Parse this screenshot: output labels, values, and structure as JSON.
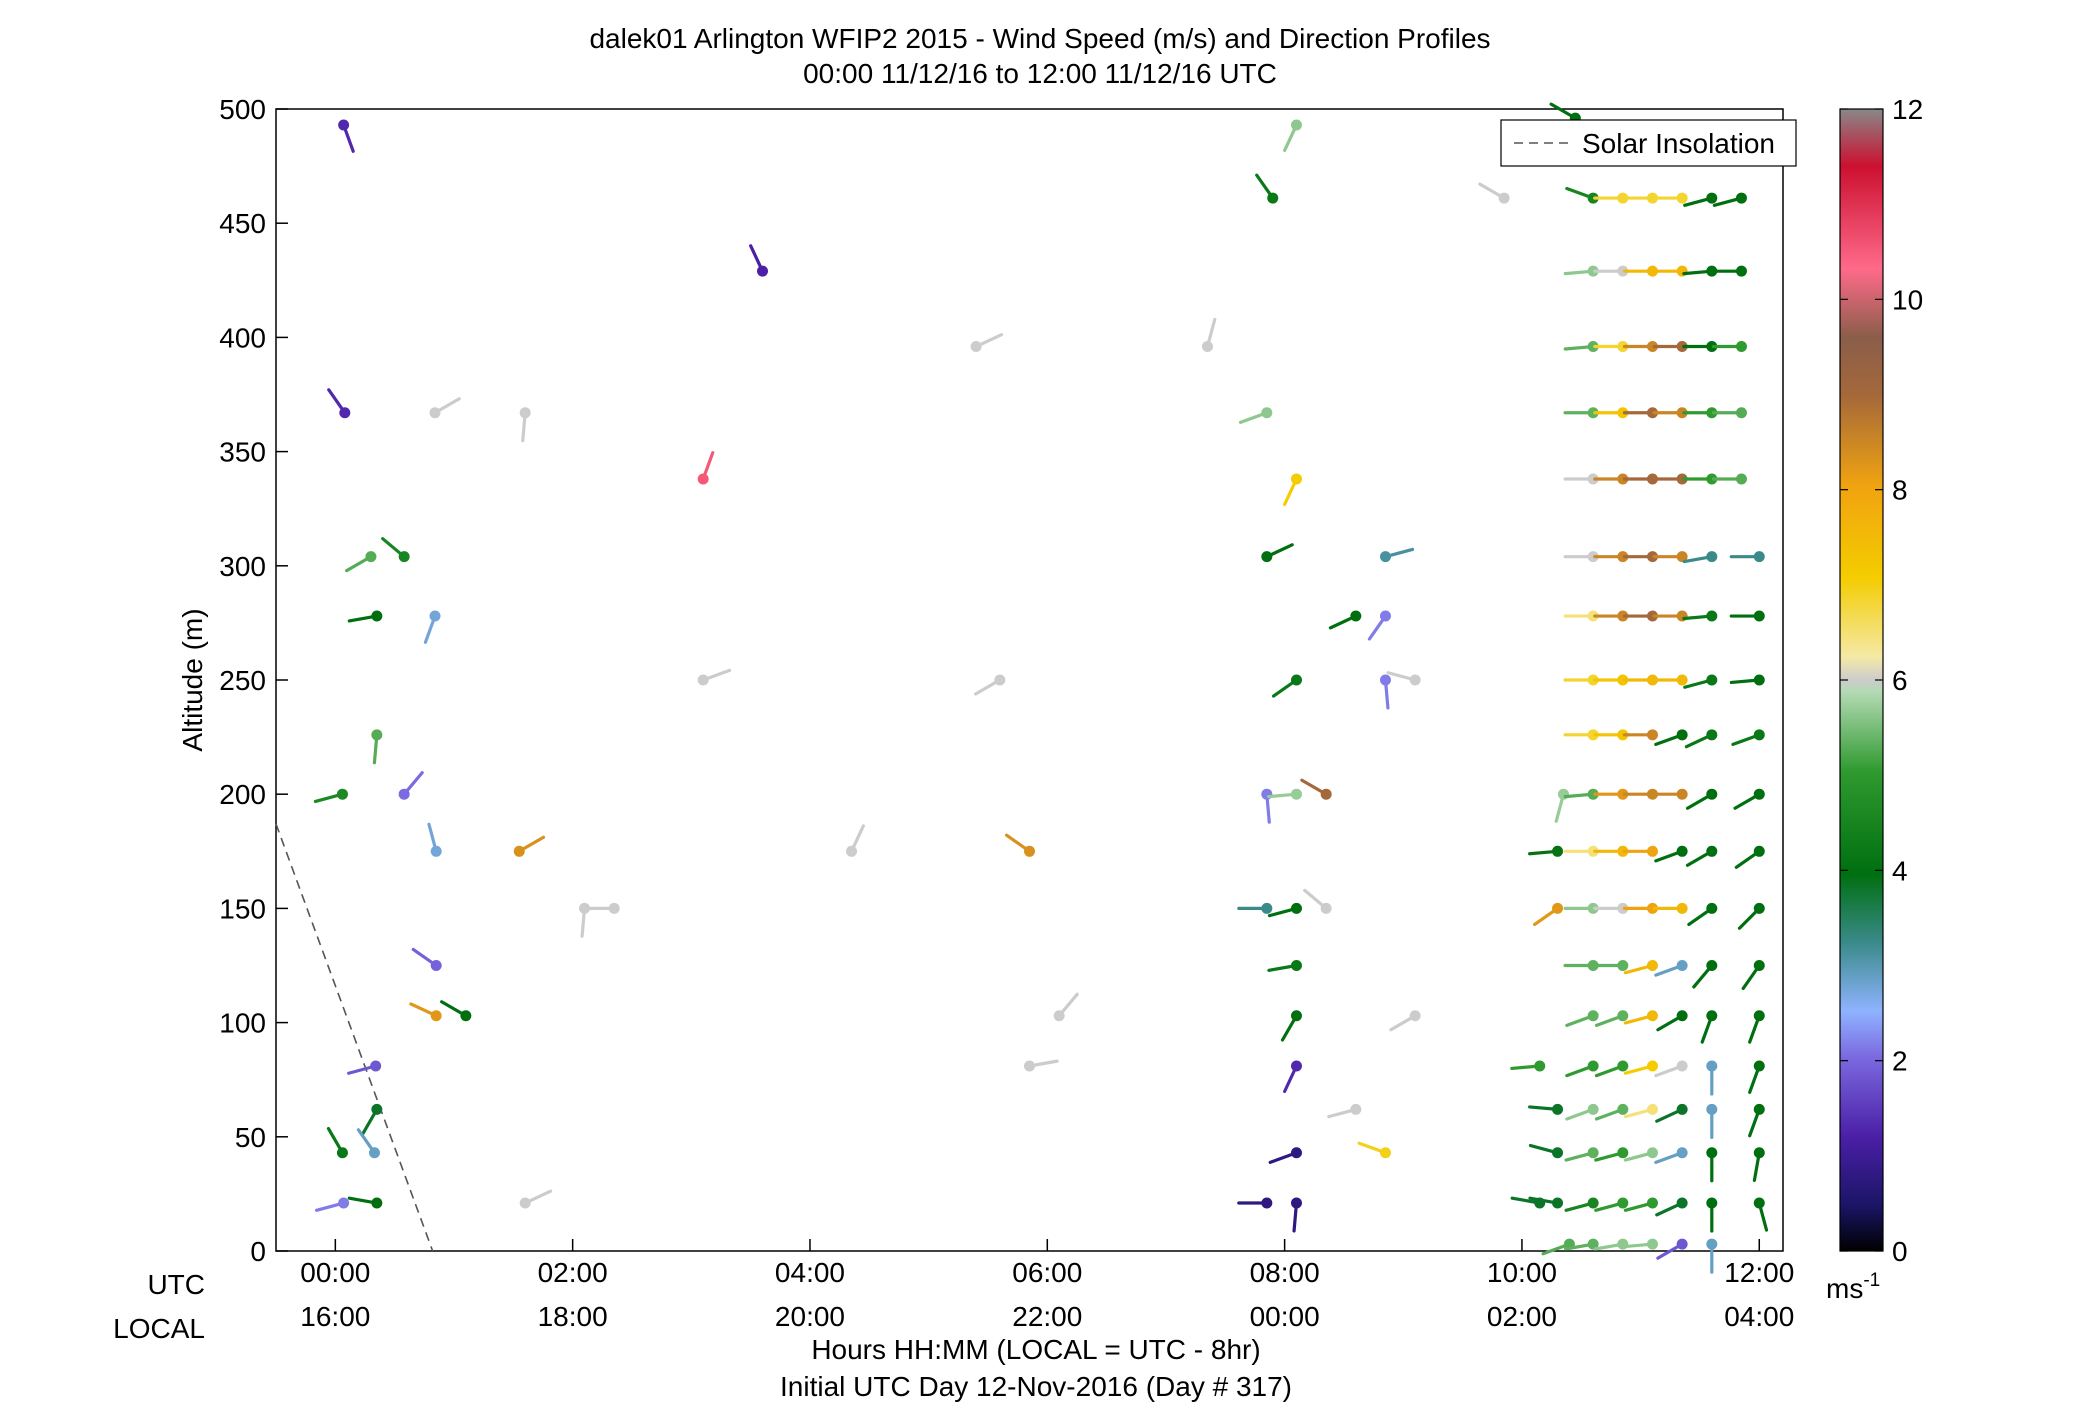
{
  "chart_data": {
    "type": "scatter",
    "title": "dalek01 Arlington WFIP2 2015 - Wind Speed (m/s) and Direction Profiles",
    "subtitle": "00:00 11/12/16 to 12:00 11/12/16  UTC",
    "ylabel": "Altitude (m)",
    "xlabel": "Hours HH:MM  (LOCAL = UTC - 8hr)",
    "xlabel2": "Initial UTC Day 12-Nov-2016 (Day # 317)",
    "row_labels": {
      "utc": "UTC",
      "local": "LOCAL"
    },
    "xlim": [
      -0.5,
      12.2
    ],
    "ylim": [
      0,
      500
    ],
    "x_ticks": [
      {
        "hour": 0,
        "utc": "00:00",
        "local": "16:00"
      },
      {
        "hour": 2,
        "utc": "02:00",
        "local": "18:00"
      },
      {
        "hour": 4,
        "utc": "04:00",
        "local": "20:00"
      },
      {
        "hour": 6,
        "utc": "06:00",
        "local": "22:00"
      },
      {
        "hour": 8,
        "utc": "08:00",
        "local": "00:00"
      },
      {
        "hour": 10,
        "utc": "10:00",
        "local": "02:00"
      },
      {
        "hour": 12,
        "utc": "12:00",
        "local": "04:00"
      }
    ],
    "y_ticks": [
      "0",
      "50",
      "100",
      "150",
      "200",
      "250",
      "300",
      "350",
      "400",
      "450",
      "500"
    ],
    "legend": {
      "label": "Solar Insolation",
      "position": "top-right",
      "line_color": "#555555"
    },
    "solar_insolation": {
      "x": [
        -0.5,
        0.82
      ],
      "y": [
        187,
        0
      ]
    },
    "colorbar": {
      "min": 0,
      "max": 12,
      "ticks": [
        "0",
        "2",
        "4",
        "6",
        "8",
        "10",
        "12"
      ],
      "unit": "ms",
      "unit_exp": "-1"
    },
    "points": [
      {
        "t": 0.07,
        "z": 493,
        "speed": 1.3,
        "dir": 160
      },
      {
        "t": 0.08,
        "z": 367,
        "speed": 1.3,
        "dir": 325
      },
      {
        "t": 0.06,
        "z": 200,
        "speed": 4.1,
        "dir": 255
      },
      {
        "t": 0.06,
        "z": 43,
        "speed": 3.7,
        "dir": 330
      },
      {
        "t": 0.07,
        "z": 21,
        "speed": 2.1,
        "dir": 255
      },
      {
        "t": 0.3,
        "z": 304,
        "speed": 4.9,
        "dir": 240
      },
      {
        "t": 0.35,
        "z": 278,
        "speed": 3.5,
        "dir": 260
      },
      {
        "t": 0.35,
        "z": 226,
        "speed": 4.9,
        "dir": 185
      },
      {
        "t": 0.34,
        "z": 81,
        "speed": 1.8,
        "dir": 255
      },
      {
        "t": 0.35,
        "z": 62,
        "speed": 3.4,
        "dir": 210
      },
      {
        "t": 0.33,
        "z": 43,
        "speed": 2.7,
        "dir": 325
      },
      {
        "t": 0.35,
        "z": 21,
        "speed": 3.5,
        "dir": 280
      },
      {
        "t": 0.58,
        "z": 304,
        "speed": 4.0,
        "dir": 310
      },
      {
        "t": 0.58,
        "z": 200,
        "speed": 2.0,
        "dir": 40
      },
      {
        "t": 0.84,
        "z": 367,
        "speed": 6.0,
        "dir": 60
      },
      {
        "t": 0.84,
        "z": 278,
        "speed": 2.6,
        "dir": 200
      },
      {
        "t": 0.85,
        "z": 175,
        "speed": 2.6,
        "dir": 345
      },
      {
        "t": 0.85,
        "z": 125,
        "speed": 1.9,
        "dir": 305
      },
      {
        "t": 0.85,
        "z": 103,
        "speed": 8.2,
        "dir": 295
      },
      {
        "t": 1.1,
        "z": 103,
        "speed": 3.5,
        "dir": 300
      },
      {
        "t": 1.6,
        "z": 367,
        "speed": 6.0,
        "dir": 185
      },
      {
        "t": 1.6,
        "z": 21,
        "speed": 6.0,
        "dir": 65
      },
      {
        "t": 1.55,
        "z": 175,
        "speed": 8.3,
        "dir": 60
      },
      {
        "t": 2.1,
        "z": 150,
        "speed": 6.0,
        "dir": 185
      },
      {
        "t": 2.35,
        "z": 150,
        "speed": 6.0,
        "dir": 270
      },
      {
        "t": 3.1,
        "z": 250,
        "speed": 6.0,
        "dir": 70
      },
      {
        "t": 3.1,
        "z": 338,
        "speed": 10.6,
        "dir": 20
      },
      {
        "t": 3.6,
        "z": 429,
        "speed": 1.2,
        "dir": 335
      },
      {
        "t": 4.35,
        "z": 175,
        "speed": 6.0,
        "dir": 25
      },
      {
        "t": 5.4,
        "z": 396,
        "speed": 6.0,
        "dir": 65
      },
      {
        "t": 5.6,
        "z": 250,
        "speed": 6.0,
        "dir": 240
      },
      {
        "t": 5.85,
        "z": 175,
        "speed": 8.3,
        "dir": 305
      },
      {
        "t": 6.1,
        "z": 103,
        "speed": 6.0,
        "dir": 40
      },
      {
        "t": 5.85,
        "z": 81,
        "speed": 6.0,
        "dir": 80
      },
      {
        "t": 7.35,
        "z": 396,
        "speed": 6.0,
        "dir": 15
      },
      {
        "t": 7.9,
        "z": 461,
        "speed": 3.7,
        "dir": 325
      },
      {
        "t": 7.85,
        "z": 367,
        "speed": 5.5,
        "dir": 250
      },
      {
        "t": 7.85,
        "z": 304,
        "speed": 3.5,
        "dir": 65
      },
      {
        "t": 7.85,
        "z": 200,
        "speed": 2.1,
        "dir": 175
      },
      {
        "t": 7.85,
        "z": 150,
        "speed": 3.0,
        "dir": 270
      },
      {
        "t": 7.85,
        "z": 21,
        "speed": 0.8,
        "dir": 270
      },
      {
        "t": 8.1,
        "z": 493,
        "speed": 5.5,
        "dir": 205
      },
      {
        "t": 8.1,
        "z": 338,
        "speed": 7.0,
        "dir": 205
      },
      {
        "t": 8.1,
        "z": 250,
        "speed": 3.7,
        "dir": 235
      },
      {
        "t": 8.1,
        "z": 200,
        "speed": 5.6,
        "dir": 265
      },
      {
        "t": 8.1,
        "z": 150,
        "speed": 3.5,
        "dir": 255
      },
      {
        "t": 8.1,
        "z": 125,
        "speed": 3.7,
        "dir": 260
      },
      {
        "t": 8.1,
        "z": 103,
        "speed": 3.5,
        "dir": 210
      },
      {
        "t": 8.1,
        "z": 81,
        "speed": 1.3,
        "dir": 205
      },
      {
        "t": 8.1,
        "z": 43,
        "speed": 0.8,
        "dir": 250
      },
      {
        "t": 8.1,
        "z": 21,
        "speed": 0.8,
        "dir": 185
      },
      {
        "t": 8.35,
        "z": 200,
        "speed": 9.0,
        "dir": 300
      },
      {
        "t": 8.35,
        "z": 150,
        "speed": 6.0,
        "dir": 310
      },
      {
        "t": 8.6,
        "z": 278,
        "speed": 3.5,
        "dir": 245
      },
      {
        "t": 8.6,
        "z": 62,
        "speed": 6.0,
        "dir": 255
      },
      {
        "t": 8.85,
        "z": 304,
        "speed": 2.9,
        "dir": 75
      },
      {
        "t": 8.85,
        "z": 278,
        "speed": 2.1,
        "dir": 215
      },
      {
        "t": 8.85,
        "z": 250,
        "speed": 2.1,
        "dir": 175
      },
      {
        "t": 8.85,
        "z": 43,
        "speed": 6.9,
        "dir": 290
      },
      {
        "t": 9.1,
        "z": 250,
        "speed": 6.0,
        "dir": 285
      },
      {
        "t": 9.1,
        "z": 103,
        "speed": 6.0,
        "dir": 240
      },
      {
        "t": 9.85,
        "z": 461,
        "speed": 6.0,
        "dir": 300
      },
      {
        "t": 10.35,
        "z": 200,
        "speed": 5.6,
        "dir": 195
      },
      {
        "t": 10.3,
        "z": 175,
        "speed": 3.6,
        "dir": 265
      },
      {
        "t": 10.3,
        "z": 150,
        "speed": 8.2,
        "dir": 235
      },
      {
        "t": 10.3,
        "z": 62,
        "speed": 3.4,
        "dir": 275
      },
      {
        "t": 10.3,
        "z": 43,
        "speed": 3.4,
        "dir": 285
      },
      {
        "t": 10.3,
        "z": 21,
        "speed": 3.4,
        "dir": 280
      },
      {
        "t": 10.15,
        "z": 21,
        "speed": 3.4,
        "dir": 280
      },
      {
        "t": 10.15,
        "z": 81,
        "speed": 4.5,
        "dir": 265
      },
      {
        "t": 10.4,
        "z": 3,
        "speed": 4.9,
        "dir": 250
      },
      {
        "t": 10.6,
        "z": 461,
        "speed": 4.0,
        "dir": 290
      },
      {
        "t": 10.6,
        "z": 429,
        "speed": 5.5,
        "dir": 265
      },
      {
        "t": 10.6,
        "z": 396,
        "speed": 5.0,
        "dir": 265
      },
      {
        "t": 10.6,
        "z": 367,
        "speed": 5.0,
        "dir": 270
      },
      {
        "t": 10.6,
        "z": 338,
        "speed": 6.0,
        "dir": 270
      },
      {
        "t": 10.6,
        "z": 304,
        "speed": 6.0,
        "dir": 270
      },
      {
        "t": 10.6,
        "z": 278,
        "speed": 6.5,
        "dir": 270
      },
      {
        "t": 10.6,
        "z": 250,
        "speed": 6.8,
        "dir": 270
      },
      {
        "t": 10.6,
        "z": 226,
        "speed": 6.8,
        "dir": 270
      },
      {
        "t": 10.6,
        "z": 200,
        "speed": 4.9,
        "dir": 265
      },
      {
        "t": 10.6,
        "z": 175,
        "speed": 6.5,
        "dir": 270
      },
      {
        "t": 10.6,
        "z": 150,
        "speed": 5.5,
        "dir": 270
      },
      {
        "t": 10.6,
        "z": 125,
        "speed": 5.0,
        "dir": 270
      },
      {
        "t": 10.6,
        "z": 103,
        "speed": 5.0,
        "dir": 250
      },
      {
        "t": 10.6,
        "z": 81,
        "speed": 4.5,
        "dir": 250
      },
      {
        "t": 10.6,
        "z": 62,
        "speed": 5.5,
        "dir": 250
      },
      {
        "t": 10.6,
        "z": 43,
        "speed": 5.0,
        "dir": 255
      },
      {
        "t": 10.6,
        "z": 21,
        "speed": 4.0,
        "dir": 255
      },
      {
        "t": 10.6,
        "z": 3,
        "speed": 5.0,
        "dir": 260
      },
      {
        "t": 10.85,
        "z": 461,
        "speed": 6.8,
        "dir": 270
      },
      {
        "t": 10.85,
        "z": 429,
        "speed": 6.0,
        "dir": 270
      },
      {
        "t": 10.85,
        "z": 396,
        "speed": 6.8,
        "dir": 270
      },
      {
        "t": 10.85,
        "z": 367,
        "speed": 7.2,
        "dir": 270
      },
      {
        "t": 10.85,
        "z": 338,
        "speed": 8.5,
        "dir": 270
      },
      {
        "t": 10.85,
        "z": 304,
        "speed": 8.5,
        "dir": 270
      },
      {
        "t": 10.85,
        "z": 278,
        "speed": 8.5,
        "dir": 270
      },
      {
        "t": 10.85,
        "z": 250,
        "speed": 7.2,
        "dir": 270
      },
      {
        "t": 10.85,
        "z": 226,
        "speed": 7.2,
        "dir": 270
      },
      {
        "t": 10.85,
        "z": 200,
        "speed": 8.2,
        "dir": 270
      },
      {
        "t": 10.85,
        "z": 175,
        "speed": 7.5,
        "dir": 270
      },
      {
        "t": 10.85,
        "z": 150,
        "speed": 6.0,
        "dir": 270
      },
      {
        "t": 10.85,
        "z": 125,
        "speed": 5.0,
        "dir": 270
      },
      {
        "t": 10.85,
        "z": 103,
        "speed": 5.0,
        "dir": 250
      },
      {
        "t": 10.85,
        "z": 81,
        "speed": 4.5,
        "dir": 250
      },
      {
        "t": 10.85,
        "z": 62,
        "speed": 5.0,
        "dir": 250
      },
      {
        "t": 10.85,
        "z": 43,
        "speed": 4.5,
        "dir": 255
      },
      {
        "t": 10.85,
        "z": 21,
        "speed": 4.5,
        "dir": 255
      },
      {
        "t": 10.85,
        "z": 3,
        "speed": 5.5,
        "dir": 260
      },
      {
        "t": 11.1,
        "z": 461,
        "speed": 6.8,
        "dir": 270
      },
      {
        "t": 11.1,
        "z": 429,
        "speed": 7.5,
        "dir": 270
      },
      {
        "t": 11.1,
        "z": 396,
        "speed": 8.5,
        "dir": 270
      },
      {
        "t": 11.1,
        "z": 367,
        "speed": 9.0,
        "dir": 270
      },
      {
        "t": 11.1,
        "z": 338,
        "speed": 9.0,
        "dir": 270
      },
      {
        "t": 11.1,
        "z": 304,
        "speed": 9.0,
        "dir": 270
      },
      {
        "t": 11.1,
        "z": 278,
        "speed": 9.0,
        "dir": 270
      },
      {
        "t": 11.1,
        "z": 250,
        "speed": 7.5,
        "dir": 270
      },
      {
        "t": 11.1,
        "z": 226,
        "speed": 8.5,
        "dir": 270
      },
      {
        "t": 11.1,
        "z": 200,
        "speed": 8.5,
        "dir": 270
      },
      {
        "t": 11.1,
        "z": 175,
        "speed": 8.0,
        "dir": 270
      },
      {
        "t": 11.1,
        "z": 150,
        "speed": 8.0,
        "dir": 270
      },
      {
        "t": 11.1,
        "z": 125,
        "speed": 7.5,
        "dir": 255
      },
      {
        "t": 11.1,
        "z": 103,
        "speed": 7.5,
        "dir": 255
      },
      {
        "t": 11.1,
        "z": 81,
        "speed": 7.0,
        "dir": 255
      },
      {
        "t": 11.1,
        "z": 62,
        "speed": 6.5,
        "dir": 255
      },
      {
        "t": 11.1,
        "z": 43,
        "speed": 5.5,
        "dir": 255
      },
      {
        "t": 11.1,
        "z": 21,
        "speed": 4.5,
        "dir": 255
      },
      {
        "t": 11.1,
        "z": 3,
        "speed": 5.5,
        "dir": 265
      },
      {
        "t": 11.35,
        "z": 461,
        "speed": 6.8,
        "dir": 270
      },
      {
        "t": 11.35,
        "z": 429,
        "speed": 7.5,
        "dir": 270
      },
      {
        "t": 11.35,
        "z": 396,
        "speed": 9.0,
        "dir": 270
      },
      {
        "t": 11.35,
        "z": 367,
        "speed": 8.5,
        "dir": 270
      },
      {
        "t": 11.35,
        "z": 338,
        "speed": 9.0,
        "dir": 270
      },
      {
        "t": 11.35,
        "z": 304,
        "speed": 8.5,
        "dir": 270
      },
      {
        "t": 11.35,
        "z": 278,
        "speed": 8.5,
        "dir": 270
      },
      {
        "t": 11.35,
        "z": 250,
        "speed": 7.5,
        "dir": 270
      },
      {
        "t": 11.35,
        "z": 226,
        "speed": 3.5,
        "dir": 250
      },
      {
        "t": 11.35,
        "z": 200,
        "speed": 8.5,
        "dir": 270
      },
      {
        "t": 11.35,
        "z": 175,
        "speed": 3.5,
        "dir": 250
      },
      {
        "t": 11.35,
        "z": 150,
        "speed": 7.5,
        "dir": 270
      },
      {
        "t": 11.35,
        "z": 125,
        "speed": 2.7,
        "dir": 250
      },
      {
        "t": 11.35,
        "z": 103,
        "speed": 3.5,
        "dir": 240
      },
      {
        "t": 11.35,
        "z": 81,
        "speed": 6.0,
        "dir": 250
      },
      {
        "t": 11.35,
        "z": 62,
        "speed": 3.4,
        "dir": 245
      },
      {
        "t": 11.35,
        "z": 43,
        "speed": 2.7,
        "dir": 250
      },
      {
        "t": 11.35,
        "z": 21,
        "speed": 3.4,
        "dir": 245
      },
      {
        "t": 11.35,
        "z": 3,
        "speed": 1.8,
        "dir": 240
      },
      {
        "t": 11.6,
        "z": 461,
        "speed": 3.5,
        "dir": 255
      },
      {
        "t": 11.6,
        "z": 429,
        "speed": 3.5,
        "dir": 265
      },
      {
        "t": 11.6,
        "z": 396,
        "speed": 3.5,
        "dir": 270
      },
      {
        "t": 11.6,
        "z": 367,
        "speed": 4.5,
        "dir": 270
      },
      {
        "t": 11.6,
        "z": 338,
        "speed": 4.5,
        "dir": 270
      },
      {
        "t": 11.6,
        "z": 304,
        "speed": 3.0,
        "dir": 260
      },
      {
        "t": 11.6,
        "z": 278,
        "speed": 3.7,
        "dir": 265
      },
      {
        "t": 11.6,
        "z": 250,
        "speed": 3.7,
        "dir": 255
      },
      {
        "t": 11.6,
        "z": 226,
        "speed": 3.7,
        "dir": 245
      },
      {
        "t": 11.6,
        "z": 200,
        "speed": 3.5,
        "dir": 240
      },
      {
        "t": 11.6,
        "z": 175,
        "speed": 3.5,
        "dir": 240
      },
      {
        "t": 11.6,
        "z": 150,
        "speed": 3.5,
        "dir": 235
      },
      {
        "t": 11.6,
        "z": 125,
        "speed": 3.5,
        "dir": 220
      },
      {
        "t": 11.6,
        "z": 103,
        "speed": 3.5,
        "dir": 200
      },
      {
        "t": 11.6,
        "z": 81,
        "speed": 2.7,
        "dir": 180
      },
      {
        "t": 11.6,
        "z": 62,
        "speed": 2.7,
        "dir": 180
      },
      {
        "t": 11.6,
        "z": 43,
        "speed": 3.5,
        "dir": 180
      },
      {
        "t": 11.6,
        "z": 21,
        "speed": 3.5,
        "dir": 180
      },
      {
        "t": 11.6,
        "z": 3,
        "speed": 2.7,
        "dir": 180
      },
      {
        "t": 11.85,
        "z": 461,
        "speed": 3.5,
        "dir": 255
      },
      {
        "t": 11.85,
        "z": 429,
        "speed": 3.5,
        "dir": 270
      },
      {
        "t": 11.85,
        "z": 396,
        "speed": 4.5,
        "dir": 270
      },
      {
        "t": 11.85,
        "z": 367,
        "speed": 4.9,
        "dir": 270
      },
      {
        "t": 11.85,
        "z": 338,
        "speed": 4.9,
        "dir": 270
      },
      {
        "t": 12.0,
        "z": 304,
        "speed": 3.0,
        "dir": 270
      },
      {
        "t": 12.0,
        "z": 278,
        "speed": 3.5,
        "dir": 270
      },
      {
        "t": 12.0,
        "z": 250,
        "speed": 3.5,
        "dir": 265
      },
      {
        "t": 12.0,
        "z": 226,
        "speed": 3.7,
        "dir": 250
      },
      {
        "t": 12.0,
        "z": 200,
        "speed": 3.5,
        "dir": 240
      },
      {
        "t": 12.0,
        "z": 175,
        "speed": 3.5,
        "dir": 235
      },
      {
        "t": 12.0,
        "z": 150,
        "speed": 3.5,
        "dir": 225
      },
      {
        "t": 12.0,
        "z": 125,
        "speed": 3.5,
        "dir": 215
      },
      {
        "t": 12.0,
        "z": 103,
        "speed": 3.5,
        "dir": 200
      },
      {
        "t": 12.0,
        "z": 81,
        "speed": 3.5,
        "dir": 200
      },
      {
        "t": 12.0,
        "z": 62,
        "speed": 3.5,
        "dir": 200
      },
      {
        "t": 12.0,
        "z": 43,
        "speed": 3.5,
        "dir": 190
      },
      {
        "t": 12.0,
        "z": 21,
        "speed": 3.5,
        "dir": 165
      },
      {
        "t": 10.45,
        "z": 496,
        "speed": 3.5,
        "dir": 300
      }
    ]
  }
}
